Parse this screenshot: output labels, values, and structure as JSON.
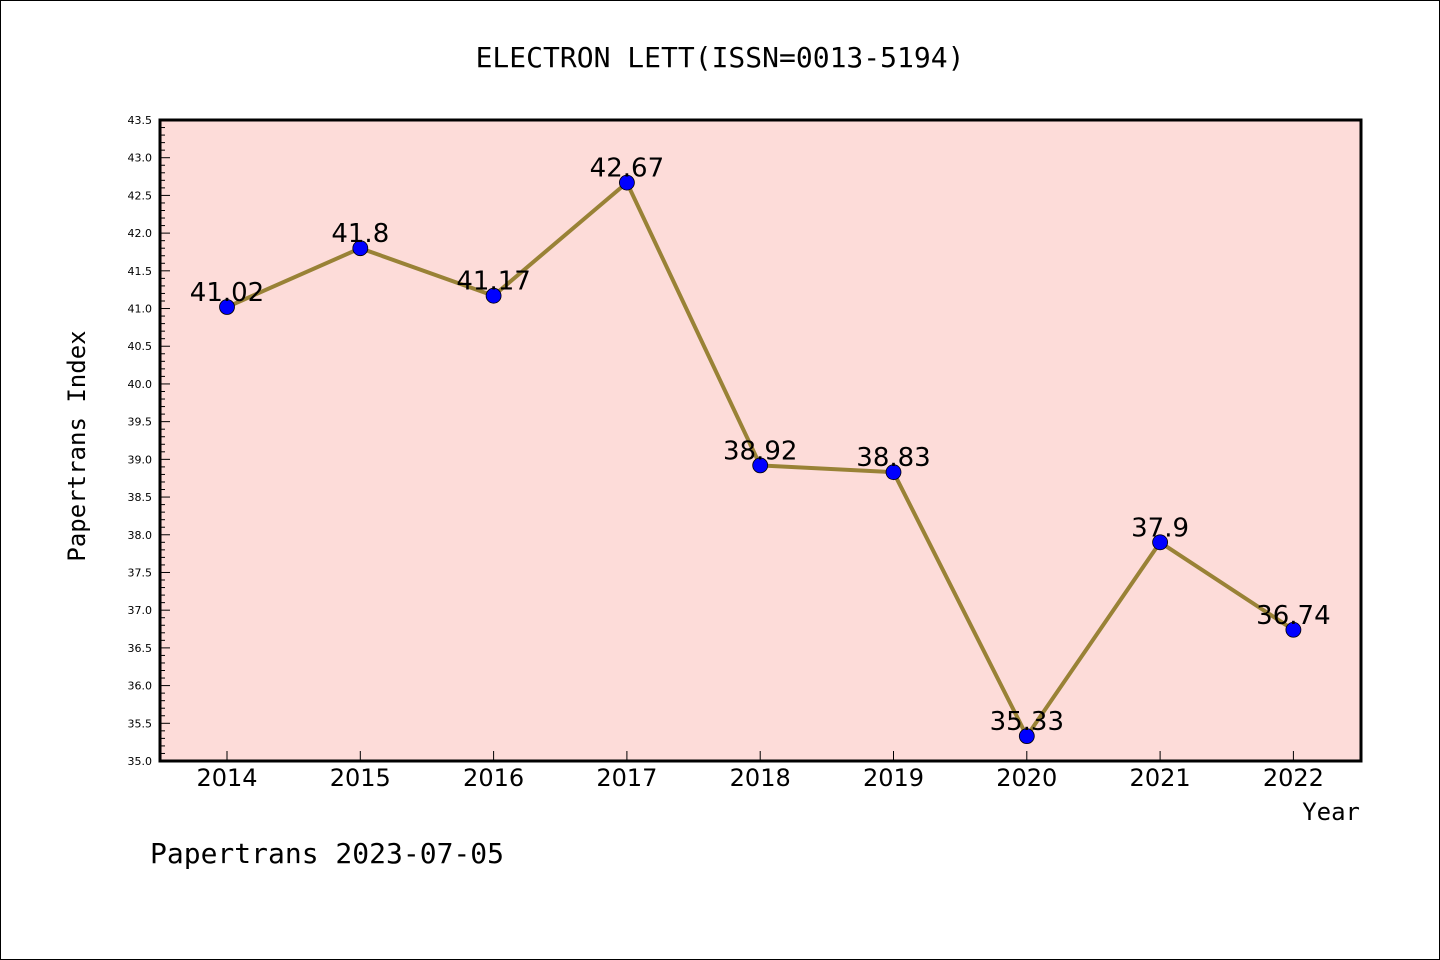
{
  "chart_data": {
    "type": "line",
    "title": "ELECTRON LETT(ISSN=0013-5194)",
    "xlabel": "Year",
    "ylabel": "Papertrans Index",
    "categories": [
      "2014",
      "2015",
      "2016",
      "2017",
      "2018",
      "2019",
      "2020",
      "2021",
      "2022"
    ],
    "values": [
      41.02,
      41.8,
      41.17,
      42.67,
      38.92,
      38.83,
      35.33,
      37.9,
      36.74
    ],
    "data_labels": [
      "41.02",
      "41.8",
      "41.17",
      "42.67",
      "38.92",
      "38.83",
      "35.33",
      "37.9",
      "36.74"
    ],
    "ylim": [
      35.0,
      43.5
    ],
    "yticks": [
      "35.0",
      "35.5",
      "36.0",
      "36.5",
      "37.0",
      "37.5",
      "38.0",
      "38.5",
      "39.0",
      "39.5",
      "40.0",
      "40.5",
      "41.0",
      "41.5",
      "42.0",
      "42.5",
      "43.0",
      "43.5"
    ],
    "grid": false,
    "legend": "none",
    "colors": {
      "plot_background": "#fddcd9",
      "line": "#998236",
      "marker": "#0000ff"
    }
  },
  "footer": "Papertrans 2023-07-05"
}
